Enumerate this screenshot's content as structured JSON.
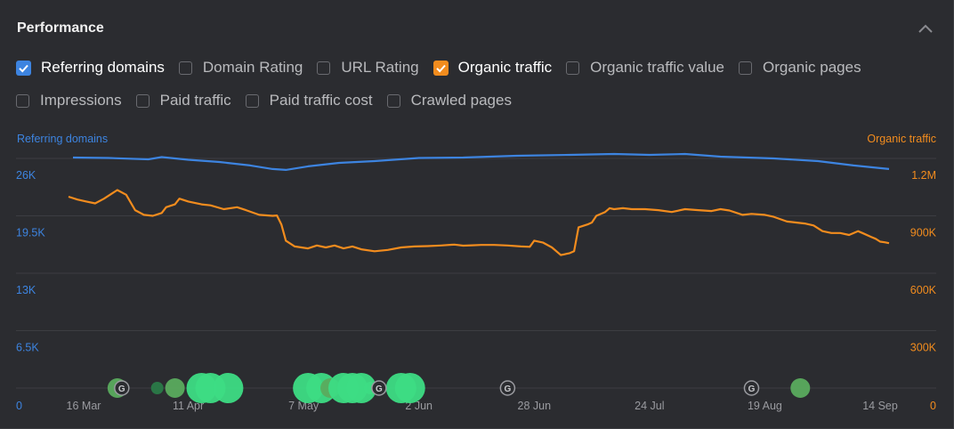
{
  "panel": {
    "title": "Performance",
    "collapse_icon": "chevron-up-icon"
  },
  "metrics": [
    [
      {
        "label": "Referring domains",
        "checked": true,
        "color": "#3d84e0"
      },
      {
        "label": "Domain Rating",
        "checked": false
      },
      {
        "label": "URL Rating",
        "checked": false
      },
      {
        "label": "Organic traffic",
        "checked": true,
        "color": "#f28c1e"
      },
      {
        "label": "Organic traffic value",
        "checked": false
      },
      {
        "label": "Organic pages",
        "checked": false
      }
    ],
    [
      {
        "label": "Impressions",
        "checked": false
      },
      {
        "label": "Paid traffic",
        "checked": false
      },
      {
        "label": "Paid traffic cost",
        "checked": false
      },
      {
        "label": "Crawled pages",
        "checked": false
      }
    ]
  ],
  "chart_data": {
    "type": "line",
    "left_axis_title": "Referring domains",
    "right_axis_title": "Organic traffic",
    "left_ticks": [
      "26K",
      "19.5K",
      "13K",
      "6.5K",
      "0"
    ],
    "right_ticks": [
      "1.2M",
      "900K",
      "600K",
      "300K",
      "0"
    ],
    "left_ylim": [
      0,
      26000
    ],
    "right_ylim": [
      0,
      1200000
    ],
    "x_labels": [
      "16 Mar",
      "11 Apr",
      "7 May",
      "2 Jun",
      "28 Jun",
      "24 Jul",
      "19 Aug",
      "14 Sep"
    ],
    "x_label_days": [
      0,
      26,
      52,
      78,
      104,
      130,
      156,
      182
    ],
    "grid": true,
    "series": [
      {
        "name": "Referring domains",
        "axis": "left",
        "color": "#3d84e0",
        "points": [
          [
            0,
            26100
          ],
          [
            8,
            26050
          ],
          [
            17,
            25900
          ],
          [
            20,
            26150
          ],
          [
            26,
            25850
          ],
          [
            33,
            25600
          ],
          [
            40,
            25200
          ],
          [
            45,
            24800
          ],
          [
            48,
            24700
          ],
          [
            53,
            25100
          ],
          [
            60,
            25500
          ],
          [
            68,
            25700
          ],
          [
            78,
            26050
          ],
          [
            88,
            26100
          ],
          [
            100,
            26300
          ],
          [
            112,
            26400
          ],
          [
            122,
            26500
          ],
          [
            130,
            26400
          ],
          [
            138,
            26500
          ],
          [
            146,
            26200
          ],
          [
            158,
            26000
          ],
          [
            168,
            25700
          ],
          [
            176,
            25200
          ],
          [
            184,
            24800
          ]
        ]
      },
      {
        "name": "Organic traffic",
        "axis": "right",
        "color": "#f28c1e",
        "points": [
          [
            -1,
            1000000
          ],
          [
            1,
            985000
          ],
          [
            3,
            975000
          ],
          [
            5,
            965000
          ],
          [
            7,
            990000
          ],
          [
            9,
            1020000
          ],
          [
            10,
            1035000
          ],
          [
            12,
            1010000
          ],
          [
            14,
            930000
          ],
          [
            16,
            905000
          ],
          [
            18,
            900000
          ],
          [
            20,
            915000
          ],
          [
            21,
            945000
          ],
          [
            23,
            960000
          ],
          [
            24,
            990000
          ],
          [
            26,
            975000
          ],
          [
            29,
            960000
          ],
          [
            31,
            955000
          ],
          [
            34,
            935000
          ],
          [
            37,
            945000
          ],
          [
            39,
            930000
          ],
          [
            42,
            905000
          ],
          [
            45,
            900000
          ],
          [
            46,
            902000
          ],
          [
            47,
            855000
          ],
          [
            48,
            770000
          ],
          [
            50,
            740000
          ],
          [
            53,
            730000
          ],
          [
            55,
            745000
          ],
          [
            57,
            735000
          ],
          [
            59,
            745000
          ],
          [
            61,
            730000
          ],
          [
            63,
            740000
          ],
          [
            65,
            725000
          ],
          [
            68,
            715000
          ],
          [
            71,
            722000
          ],
          [
            74,
            735000
          ],
          [
            77,
            740000
          ],
          [
            80,
            742000
          ],
          [
            83,
            745000
          ],
          [
            86,
            750000
          ],
          [
            88,
            744000
          ],
          [
            90,
            746000
          ],
          [
            92,
            748000
          ],
          [
            95,
            748000
          ],
          [
            98,
            745000
          ],
          [
            101,
            740000
          ],
          [
            103,
            738000
          ],
          [
            104,
            770000
          ],
          [
            106,
            760000
          ],
          [
            108,
            735000
          ],
          [
            110,
            695000
          ],
          [
            112,
            705000
          ],
          [
            113,
            715000
          ],
          [
            114,
            840000
          ],
          [
            116,
            855000
          ],
          [
            117,
            865000
          ],
          [
            118,
            900000
          ],
          [
            120,
            920000
          ],
          [
            121,
            940000
          ],
          [
            122,
            935000
          ],
          [
            124,
            940000
          ],
          [
            126,
            935000
          ],
          [
            129,
            935000
          ],
          [
            132,
            930000
          ],
          [
            135,
            920000
          ],
          [
            138,
            935000
          ],
          [
            141,
            930000
          ],
          [
            144,
            925000
          ],
          [
            146,
            935000
          ],
          [
            148,
            928000
          ],
          [
            151,
            905000
          ],
          [
            153,
            910000
          ],
          [
            156,
            905000
          ],
          [
            158,
            895000
          ],
          [
            161,
            870000
          ],
          [
            163,
            865000
          ],
          [
            165,
            860000
          ],
          [
            167,
            850000
          ],
          [
            169,
            820000
          ],
          [
            171,
            810000
          ],
          [
            173,
            810000
          ],
          [
            175,
            800000
          ],
          [
            177,
            820000
          ],
          [
            178,
            810000
          ],
          [
            180,
            790000
          ],
          [
            181,
            780000
          ],
          [
            182,
            765000
          ],
          [
            183,
            762000
          ],
          [
            184,
            757000
          ]
        ]
      }
    ],
    "annotations": [
      {
        "type": "google",
        "day": 11
      },
      {
        "type": "google",
        "day": 69
      },
      {
        "type": "google",
        "day": 98
      },
      {
        "type": "google",
        "day": 153
      }
    ],
    "bubbles": [
      {
        "day": 10,
        "size": 2,
        "color": "#5aab5e"
      },
      {
        "day": 19,
        "size": 1,
        "color": "#2a7a48"
      },
      {
        "day": 23,
        "size": 2,
        "color": "#5aab5e"
      },
      {
        "day": 29,
        "size": 3,
        "color": "#3ddc84"
      },
      {
        "day": 31,
        "size": 3,
        "color": "#3ddc84"
      },
      {
        "day": 35,
        "size": 3,
        "color": "#3ddc84"
      },
      {
        "day": 53,
        "size": 3,
        "color": "#3ddc84"
      },
      {
        "day": 56,
        "size": 3,
        "color": "#3ddc84"
      },
      {
        "day": 58,
        "size": 2,
        "color": "#5aab5e"
      },
      {
        "day": 61,
        "size": 3,
        "color": "#3ddc84"
      },
      {
        "day": 63,
        "size": 3,
        "color": "#3ddc84"
      },
      {
        "day": 65,
        "size": 3,
        "color": "#3ddc84"
      },
      {
        "day": 67,
        "size": 1,
        "color": "#3ddc84"
      },
      {
        "day": 74,
        "size": 3,
        "color": "#3ddc84"
      },
      {
        "day": 76,
        "size": 3,
        "color": "#3ddc84"
      },
      {
        "day": 164,
        "size": 2,
        "color": "#5aab5e"
      }
    ]
  }
}
